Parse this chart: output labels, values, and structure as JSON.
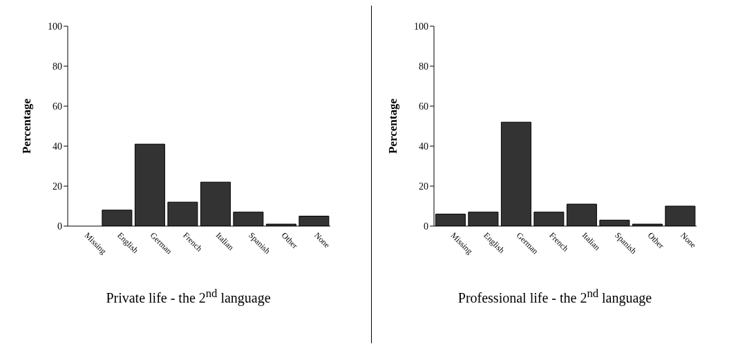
{
  "chart_data": [
    {
      "type": "bar",
      "title": "Private life - the 2$^{nd}$ language",
      "ylabel": "Percentage",
      "categories": [
        "Missing",
        "English",
        "German",
        "French",
        "Italian",
        "Spanish",
        "Other",
        "None"
      ],
      "values": [
        0,
        8,
        41,
        12,
        22,
        7,
        1,
        5
      ],
      "color": "#333333",
      "ylim": [
        0,
        100
      ],
      "yticks": [
        0,
        20,
        40,
        60,
        80,
        100
      ],
      "grid": false,
      "legend": false
    },
    {
      "type": "bar",
      "title": "Professional life - the 2$^{nd}$ language",
      "ylabel": "Percentage",
      "categories": [
        "Missing",
        "English",
        "German",
        "French",
        "Italian",
        "Spanish",
        "Other",
        "None"
      ],
      "values": [
        6,
        7,
        52,
        7,
        11,
        3,
        1,
        10
      ],
      "color": "#333333",
      "ylim": [
        0,
        100
      ],
      "yticks": [
        0,
        20,
        40,
        60,
        80,
        100
      ],
      "grid": false,
      "legend": false
    }
  ]
}
